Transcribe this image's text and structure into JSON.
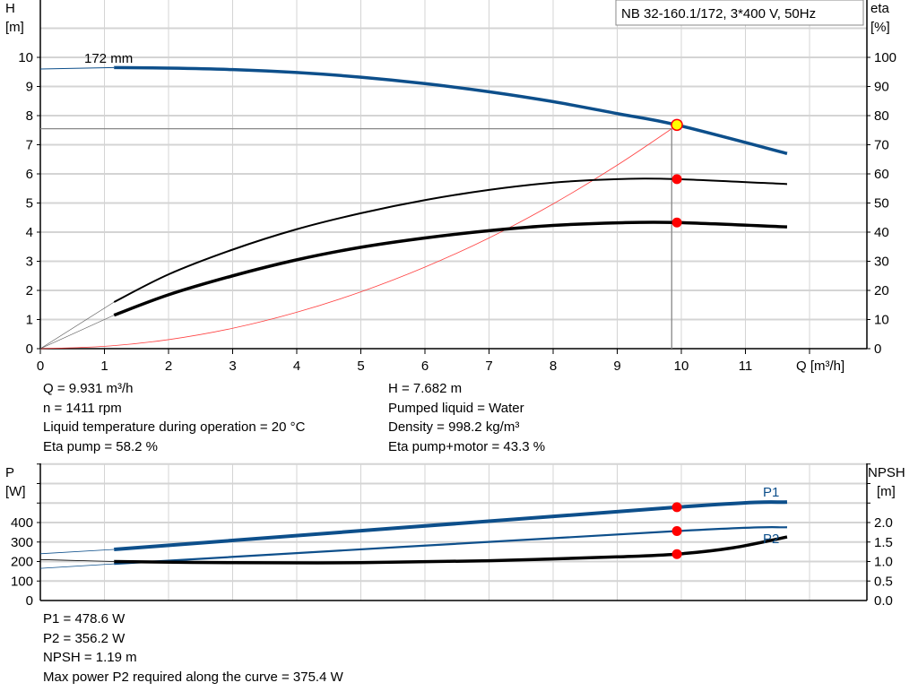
{
  "legend_box": "NB 32-160.1/172, 3*400 V, 50Hz",
  "curve_label": "172 mm",
  "info_top_left": [
    "Q = 9.931 m³/h",
    "n = 1411 rpm",
    "Liquid temperature during operation = 20 °C",
    "Eta pump = 58.2 %"
  ],
  "info_top_right": [
    "H = 7.682 m",
    "Pumped liquid = Water",
    "Density = 998.2 kg/m³",
    "Eta pump+motor = 43.3 %"
  ],
  "info_bottom": [
    "P1 = 478.6 W",
    "P2 = 356.2 W",
    "NPSH = 1.19 m",
    "Max power P2 required along the curve = 375.4 W"
  ],
  "colors": {
    "head": "#0d4f8b",
    "eta": "#000000",
    "system": "#ff4040",
    "point": "#ff0000",
    "op_point": "#ffff00",
    "grid": "#d4d4d4"
  },
  "chart_data": [
    {
      "type": "line",
      "ylabel_left": "H",
      "yunit_left": "[m]",
      "ylabel_right": "eta",
      "yunit_right": "[%]",
      "xlabel": "Q [m³/h]",
      "xlim": [
        0,
        13
      ],
      "ylim_left": [
        0,
        10
      ],
      "ylim_right": [
        0,
        100
      ],
      "grid": true,
      "xticks": [
        "0",
        "1",
        "2",
        "3",
        "4",
        "5",
        "6",
        "7",
        "8",
        "9",
        "10",
        "11"
      ],
      "yticks_left": [
        "0",
        "1",
        "2",
        "3",
        "4",
        "5",
        "6",
        "7",
        "8",
        "9",
        "10"
      ],
      "yticks_right": [
        "0",
        "10",
        "20",
        "30",
        "40",
        "50",
        "60",
        "70",
        "80",
        "90",
        "100"
      ],
      "series": [
        {
          "key": "head",
          "axis": "left",
          "x": [
            0,
            1.15,
            2,
            3,
            4,
            5,
            6,
            7,
            8,
            9,
            9.93,
            11.65
          ],
          "y": [
            9.6,
            9.65,
            9.63,
            9.58,
            9.48,
            9.32,
            9.1,
            8.82,
            8.48,
            8.07,
            7.68,
            6.7
          ]
        },
        {
          "key": "eta_pump",
          "axis": "right",
          "x": [
            1.15,
            2,
            3,
            4,
            5,
            6,
            7,
            8,
            9,
            9.93,
            11.65
          ],
          "y": [
            16,
            25.5,
            34,
            41,
            46.5,
            51,
            54.5,
            57,
            58.2,
            58.2,
            56.5
          ]
        },
        {
          "key": "eta_pump_motor",
          "axis": "right",
          "x": [
            1.15,
            2,
            3,
            4,
            5,
            6,
            7,
            8,
            9,
            9.93,
            11.65
          ],
          "y": [
            11.5,
            18.5,
            25,
            30.5,
            34.8,
            38,
            40.5,
            42.3,
            43.2,
            43.3,
            41.8
          ]
        },
        {
          "key": "system",
          "axis": "left",
          "x": [
            0,
            1,
            2,
            3,
            4,
            5,
            6,
            7,
            8,
            9,
            9.85
          ],
          "y": [
            0,
            0.08,
            0.31,
            0.7,
            1.25,
            1.95,
            2.8,
            3.8,
            4.97,
            6.3,
            7.55
          ]
        }
      ],
      "operating_point": {
        "Q": 9.931,
        "H": 7.682,
        "eta_pump": 58.2,
        "eta_pump_motor": 43.3
      },
      "reference_lines": {
        "Q": 9.85,
        "H": 7.55
      }
    },
    {
      "type": "line",
      "ylabel_left": "P",
      "yunit_left": "[W]",
      "ylabel_right": "NPSH",
      "yunit_right": "[m]",
      "xlim": [
        0,
        13
      ],
      "ylim_left": [
        0,
        700
      ],
      "ylim_right": [
        0,
        3.5
      ],
      "grid": true,
      "yticks_left": [
        "0",
        "100",
        "200",
        "300",
        "400"
      ],
      "yticks_right": [
        "0.0",
        "0.5",
        "1.0",
        "1.5",
        "2.0"
      ],
      "series": [
        {
          "name": "P1",
          "axis": "left",
          "x": [
            0,
            1.15,
            9.93,
            11.65
          ],
          "y": [
            240,
            262,
            478.6,
            505
          ]
        },
        {
          "name": "P2",
          "axis": "left",
          "x": [
            0,
            1.15,
            9.93,
            11.65
          ],
          "y": [
            165,
            188,
            356.2,
            376
          ]
        },
        {
          "key": "npsh",
          "axis": "right",
          "x": [
            0,
            1.15,
            3,
            5,
            7,
            9,
            9.93,
            10.8,
            11.65
          ],
          "y": [
            1.05,
            1.0,
            0.97,
            0.97,
            1.02,
            1.12,
            1.19,
            1.35,
            1.63
          ]
        }
      ],
      "operating_point": {
        "P1": 478.6,
        "P2": 356.2,
        "NPSH": 1.19
      }
    }
  ]
}
